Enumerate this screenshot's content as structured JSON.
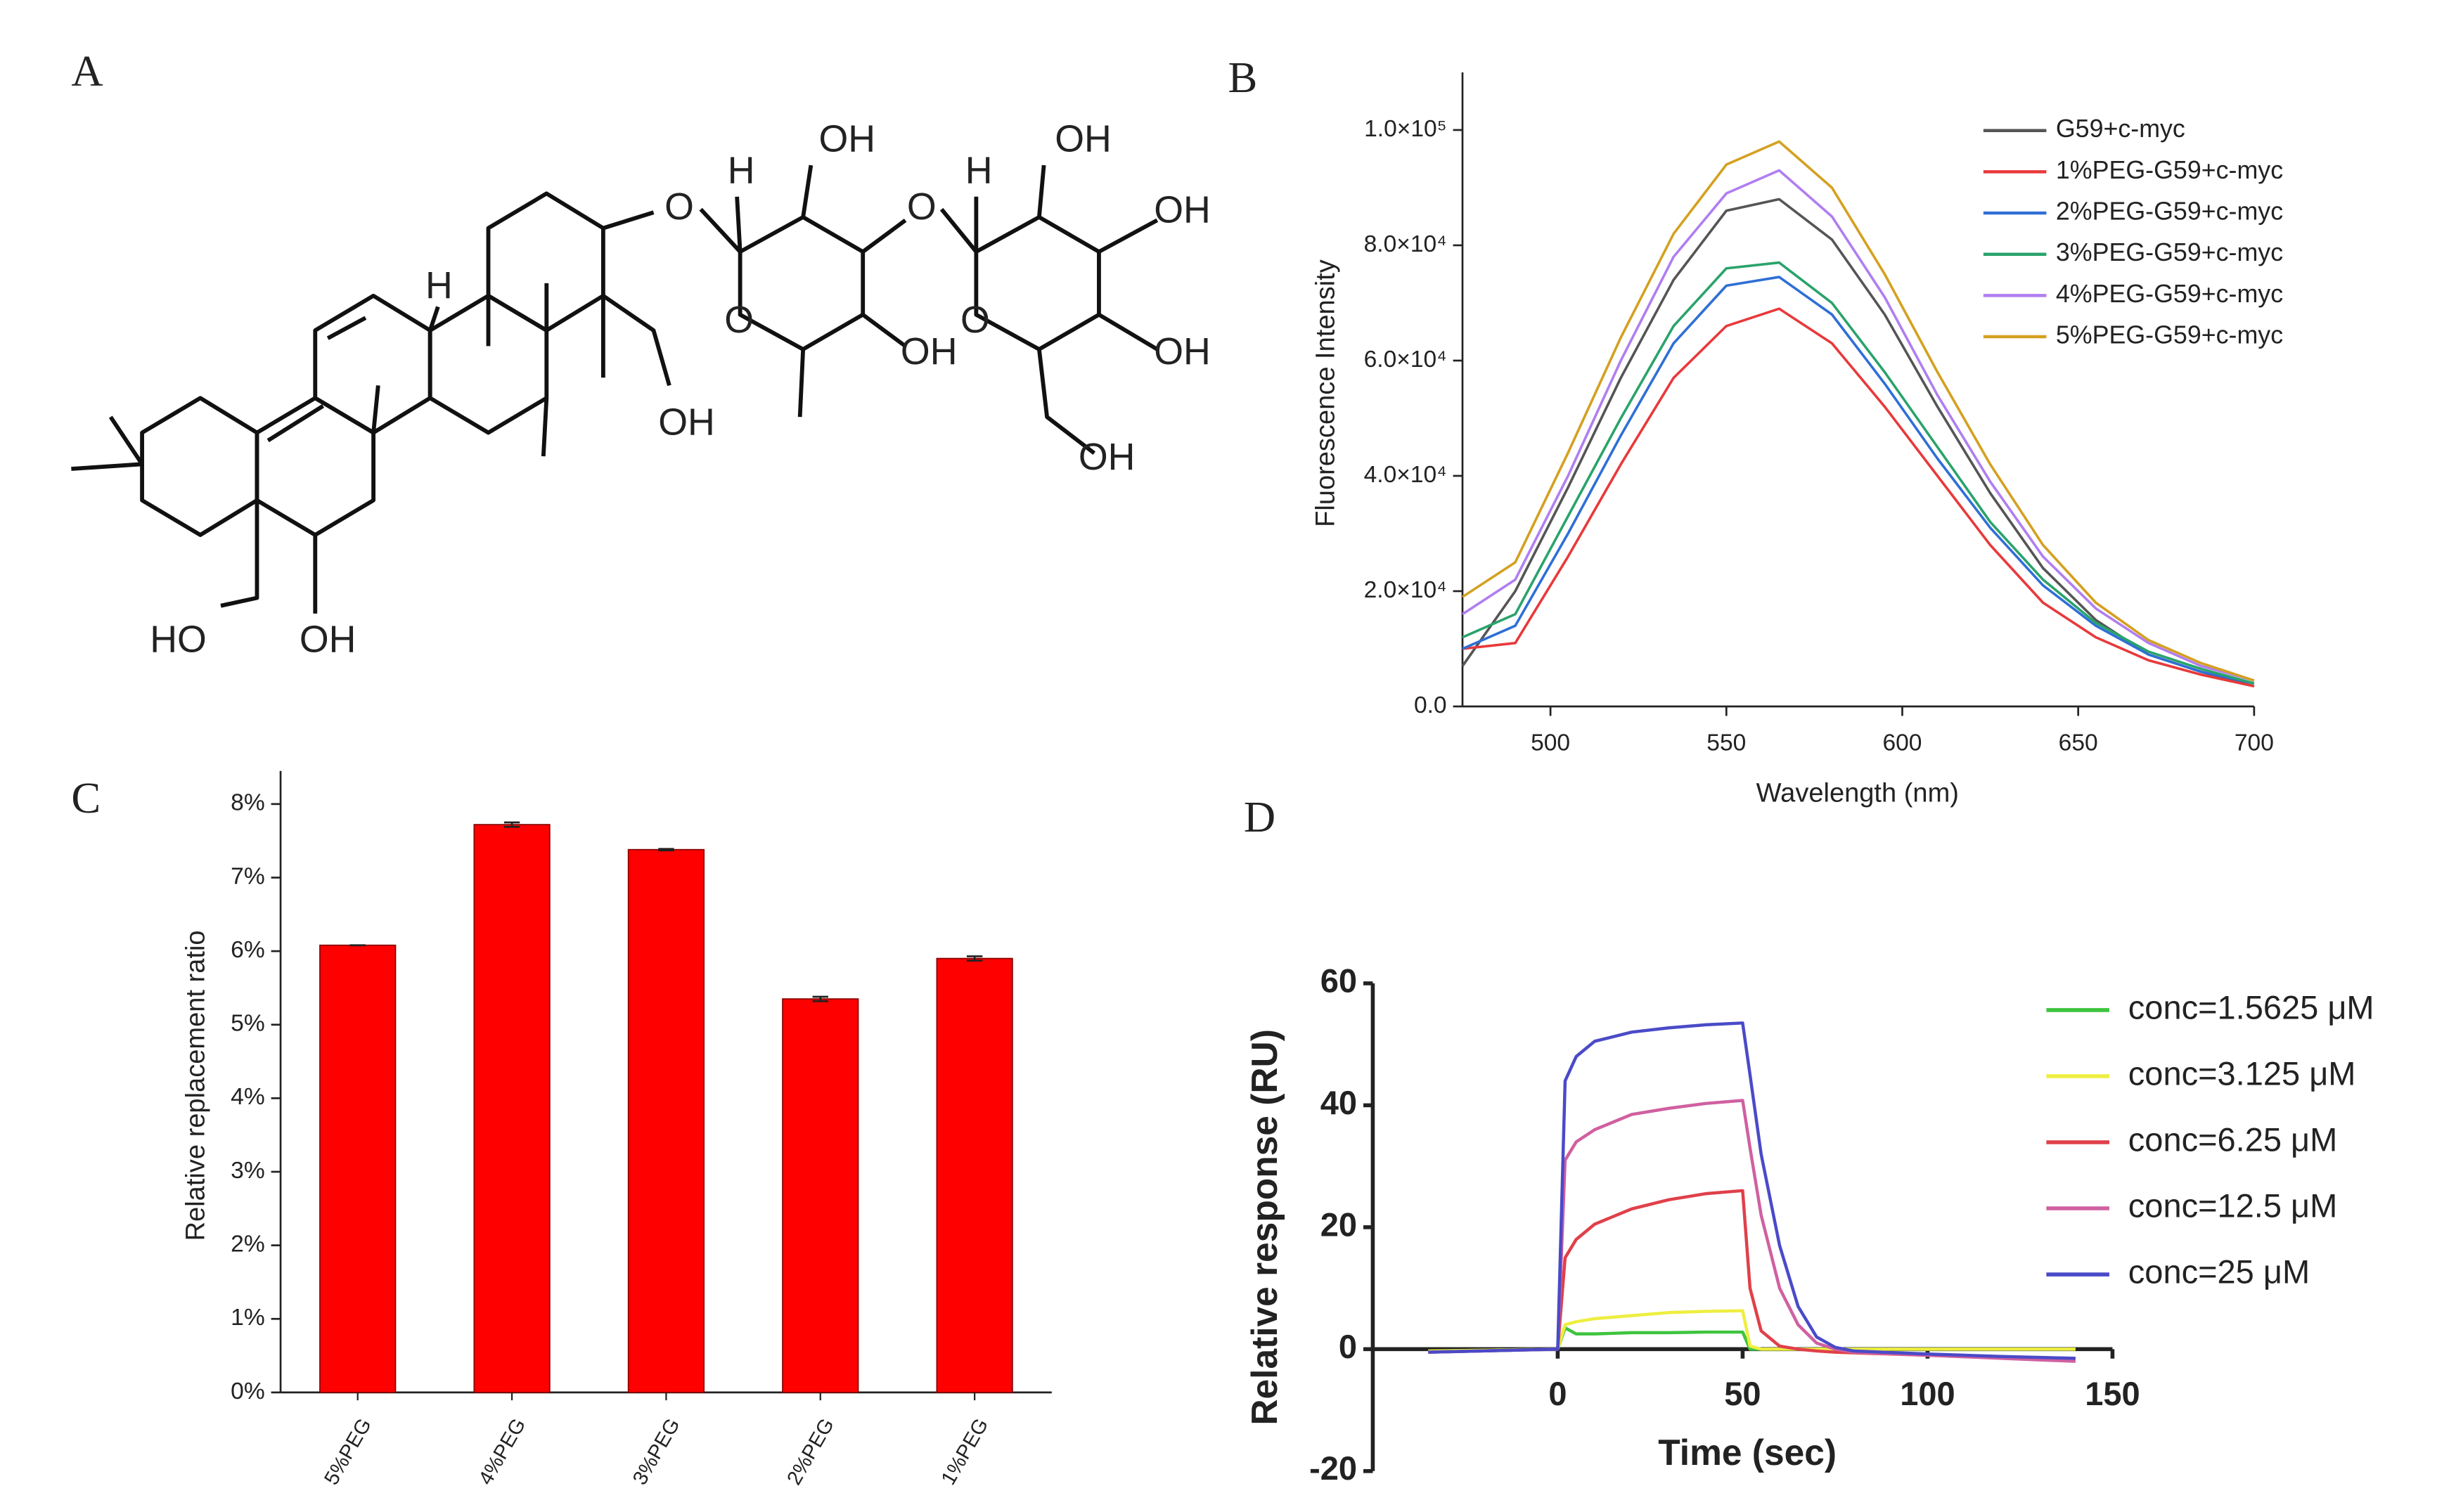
{
  "structure": {
    "panel": "A",
    "labels": [
      "OH",
      "H",
      "O",
      "OH",
      "H",
      "O",
      "OH",
      "H",
      "O",
      "OH",
      "O",
      "OH",
      "OH",
      "OH",
      "HO",
      "OH"
    ]
  },
  "chart_data": [
    {
      "type": "line",
      "panel": "B",
      "x_label": "Wavelength (nm)",
      "y_label": "Fluorescence Intensity",
      "x": [
        475,
        490,
        505,
        520,
        535,
        550,
        565,
        580,
        595,
        610,
        625,
        640,
        655,
        670,
        685,
        700
      ],
      "series": [
        {
          "name": "G59+c-myc",
          "color": "#555555",
          "values": [
            7000,
            20000,
            38000,
            57000,
            74000,
            86000,
            88000,
            81000,
            68000,
            52000,
            37000,
            24000,
            15000,
            9000,
            6000,
            3500
          ]
        },
        {
          "name": "1%PEG-G59+c-myc",
          "color": "#e8393b",
          "values": [
            10000,
            11000,
            26000,
            42000,
            57000,
            66000,
            69000,
            63000,
            52000,
            40000,
            28000,
            18000,
            12000,
            8000,
            5500,
            3500
          ]
        },
        {
          "name": "2%PEG-G59+c-myc",
          "color": "#2f6fd6",
          "values": [
            10000,
            14000,
            30000,
            47000,
            63000,
            73000,
            74500,
            68000,
            56000,
            43000,
            31000,
            21000,
            14000,
            9000,
            6000,
            4000
          ]
        },
        {
          "name": "3%PEG-G59+c-myc",
          "color": "#2aa36b",
          "values": [
            12000,
            16000,
            33000,
            50000,
            66000,
            76000,
            77000,
            70000,
            58000,
            45000,
            32000,
            22000,
            14500,
            9500,
            6500,
            4000
          ]
        },
        {
          "name": "4%PEG-G59+c-myc",
          "color": "#b07ef0",
          "values": [
            16000,
            22000,
            40000,
            60000,
            78000,
            89000,
            93000,
            85000,
            71000,
            54000,
            39000,
            26000,
            17000,
            11000,
            7000,
            4500
          ]
        },
        {
          "name": "5%PEG-G59+c-myc",
          "color": "#d4a020",
          "values": [
            19000,
            25000,
            44000,
            64000,
            82000,
            94000,
            98000,
            90000,
            75000,
            58000,
            42000,
            28000,
            18000,
            11500,
            7500,
            4500
          ]
        }
      ],
      "xlim": [
        475,
        700
      ],
      "xticks": [
        500,
        550,
        600,
        650,
        700
      ],
      "ylim": [
        0,
        110000
      ],
      "yticks": [
        {
          "value": 0,
          "label": "0.0"
        },
        {
          "value": 20000,
          "label": "2.0×10⁴"
        },
        {
          "value": 40000,
          "label": "4.0×10⁴"
        },
        {
          "value": 60000,
          "label": "6.0×10⁴"
        },
        {
          "value": 80000,
          "label": "8.0×10⁴"
        },
        {
          "value": 100000,
          "label": "1.0×10⁵"
        }
      ],
      "legend": "upper right"
    },
    {
      "type": "bar",
      "panel": "C",
      "y_label": "Relative replacement ratio",
      "categories": [
        "5%PEG",
        "4%PEG",
        "3%PEG",
        "2%PEG",
        "1%PEG"
      ],
      "values": [
        6.08,
        7.72,
        7.38,
        5.35,
        5.9
      ],
      "errors": [
        0,
        0.03,
        0.01,
        0.03,
        0.03
      ],
      "color": "#ff0000",
      "ylim": [
        0,
        8.45
      ],
      "yticks": [
        {
          "value": 0,
          "label": "0%"
        },
        {
          "value": 1,
          "label": "1%"
        },
        {
          "value": 2,
          "label": "2%"
        },
        {
          "value": 3,
          "label": "3%"
        },
        {
          "value": 4,
          "label": "4%"
        },
        {
          "value": 5,
          "label": "5%"
        },
        {
          "value": 6,
          "label": "6%"
        },
        {
          "value": 7,
          "label": "7%"
        },
        {
          "value": 8,
          "label": "8%"
        }
      ]
    },
    {
      "type": "line",
      "panel": "D",
      "x_label": "Time (sec)",
      "y_label": "Relative response (RU)",
      "x": [
        -35,
        0,
        2,
        5,
        10,
        20,
        30,
        40,
        50,
        52,
        55,
        60,
        65,
        70,
        75,
        80,
        100,
        120,
        140
      ],
      "series": [
        {
          "name": "conc=1.5625 μM",
          "color": "#3ec43e",
          "values": [
            -0.3,
            0,
            3.5,
            2.5,
            2.5,
            2.7,
            2.7,
            2.8,
            2.8,
            0,
            0,
            0,
            0,
            0,
            0,
            0,
            0,
            0,
            0
          ]
        },
        {
          "name": "conc=3.125 μM",
          "color": "#eeee40",
          "values": [
            -0.3,
            0,
            4,
            4.5,
            5,
            5.5,
            6,
            6.2,
            6.3,
            0.5,
            0,
            0,
            0,
            0,
            0,
            0,
            0,
            0,
            0
          ]
        },
        {
          "name": "conc=6.25 μM",
          "color": "#e0404a",
          "values": [
            -0.5,
            0,
            15,
            18,
            20.5,
            23,
            24.5,
            25.5,
            26,
            10,
            3,
            0.5,
            0,
            -0.3,
            -0.5,
            -0.6,
            -1,
            -1.3,
            -1.5
          ]
        },
        {
          "name": "conc=12.5 μM",
          "color": "#d060a0",
          "values": [
            -0.5,
            0,
            31,
            34,
            36,
            38.5,
            39.5,
            40.3,
            40.8,
            33,
            22,
            10,
            4,
            1,
            0,
            -0.5,
            -1,
            -1.5,
            -2
          ]
        },
        {
          "name": "conc=25 μM",
          "color": "#4a4ac8",
          "values": [
            -0.5,
            0,
            44,
            48,
            50.5,
            52,
            52.7,
            53.2,
            53.5,
            45,
            32,
            17,
            7,
            2,
            0.3,
            -0.3,
            -0.8,
            -1.2,
            -1.5
          ]
        }
      ],
      "xlim": [
        -50,
        150
      ],
      "xticks": [
        0,
        50,
        100,
        150
      ],
      "ylim": [
        -20,
        60
      ],
      "yticks": [
        -20,
        0,
        20,
        40,
        60
      ],
      "legend": "upper right"
    }
  ]
}
